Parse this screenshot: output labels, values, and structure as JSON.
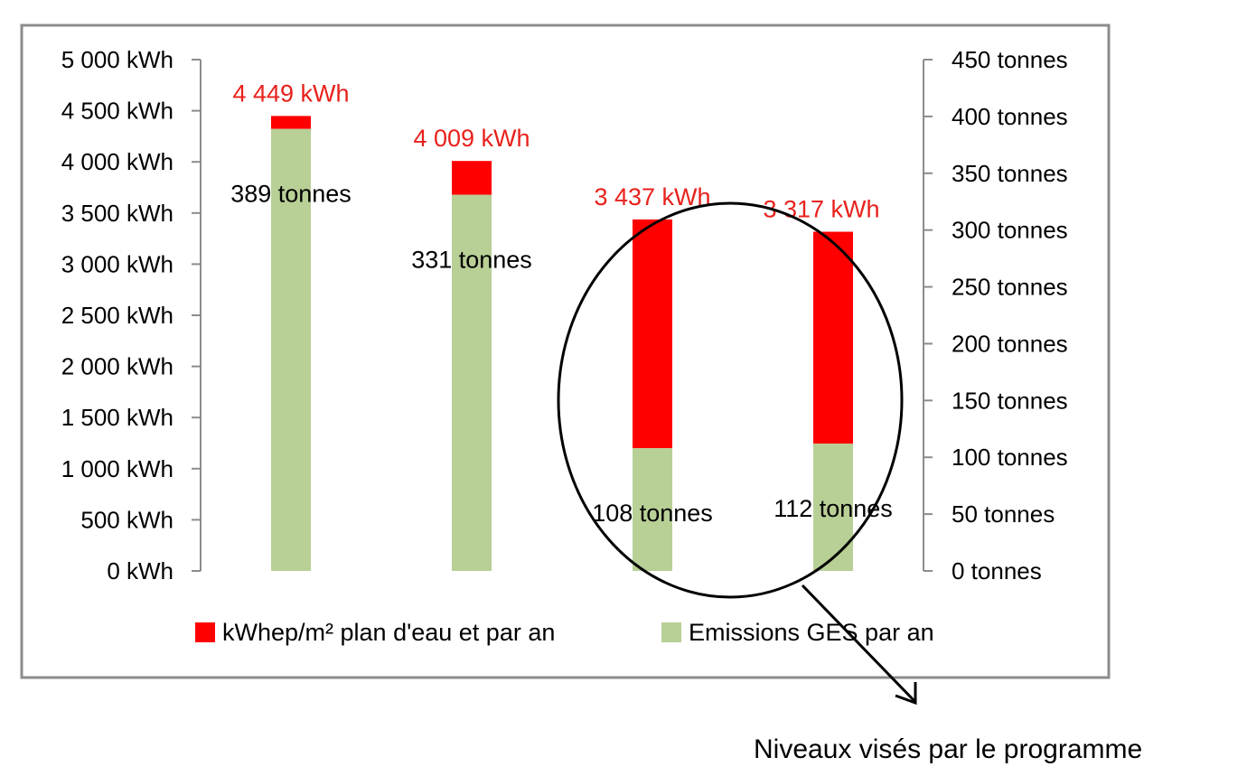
{
  "chart_data": {
    "type": "bar",
    "stacked": true,
    "categories": [
      "",
      "",
      "",
      ""
    ],
    "energy_totals_kwh": [
      4449,
      4009,
      3437,
      3317
    ],
    "energy_total_labels": [
      "4 449 kWh",
      "4 009 kWh",
      "3 437 kWh",
      "3 317 kWh"
    ],
    "series": [
      {
        "name": "Emissions GES par an",
        "axis": "right",
        "values": [
          389,
          331,
          108,
          112
        ],
        "labels": [
          "389 tonnes",
          "331 tonnes",
          "108 tonnes",
          "112 tonnes"
        ],
        "color": "#b8cf96"
      },
      {
        "name": "kWhep/m² plan d'eau et par an",
        "axis": "left",
        "color": "#ff0000"
      }
    ],
    "y_left": {
      "ylim": [
        0,
        5000
      ],
      "ticks": [
        0,
        500,
        1000,
        1500,
        2000,
        2500,
        3000,
        3500,
        4000,
        4500,
        5000
      ],
      "tick_labels": [
        "0 kWh",
        "500 kWh",
        "1 000 kWh",
        "1 500 kWh",
        "2 000 kWh",
        "2 500 kWh",
        "3 000 kWh",
        "3 500 kWh",
        "4 000 kWh",
        "4 500 kWh",
        "5 000 kWh"
      ]
    },
    "y_right": {
      "ylim": [
        0,
        450
      ],
      "ticks": [
        0,
        50,
        100,
        150,
        200,
        250,
        300,
        350,
        400,
        450
      ],
      "tick_labels": [
        "0 tonnes",
        "50 tonnes",
        "100 tonnes",
        "150 tonnes",
        "200 tonnes",
        "250 tonnes",
        "300 tonnes",
        "350 tonnes",
        "400 tonnes",
        "450 tonnes"
      ]
    },
    "grid": false,
    "legend_position": "bottom",
    "annotation": {
      "text": "Niveaux visés par le programme",
      "target_categories": [
        2,
        3
      ]
    }
  }
}
